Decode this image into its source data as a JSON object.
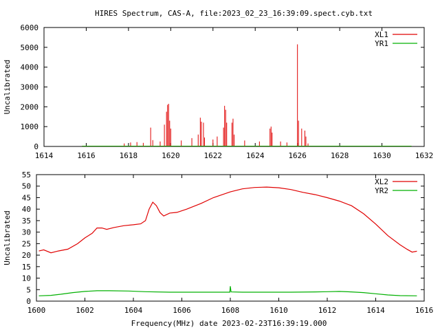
{
  "title": "HIRES Spectrum, CAS-A, file:2023_02_23_16:39:09.spect.cyb.txt",
  "xlabel": "Frequency(MHz) date 2023-02-23T16:39:19.000",
  "chart_data": [
    {
      "type": "line",
      "ylabel": "Uncalibrated",
      "xlim": [
        1614,
        1632
      ],
      "ylim": [
        0,
        6000
      ],
      "xticks": [
        1614,
        1616,
        1618,
        1620,
        1622,
        1624,
        1626,
        1628,
        1630,
        1632
      ],
      "yticks": [
        0,
        1000,
        2000,
        3000,
        4000,
        5000,
        6000
      ],
      "legend_position": "top-right",
      "series": [
        {
          "name": "XL1",
          "color": "#e00000",
          "x_range": [
            1615.8,
            1631.4
          ],
          "baseline": 15,
          "spikes": [
            [
              1617.8,
              150
            ],
            [
              1618.1,
              200
            ],
            [
              1618.4,
              220
            ],
            [
              1618.7,
              180
            ],
            [
              1619.05,
              950
            ],
            [
              1619.15,
              320
            ],
            [
              1619.5,
              250
            ],
            [
              1619.7,
              1100
            ],
            [
              1619.8,
              1750
            ],
            [
              1619.85,
              2100
            ],
            [
              1619.9,
              2150
            ],
            [
              1619.95,
              1300
            ],
            [
              1620.0,
              900
            ],
            [
              1620.5,
              300
            ],
            [
              1621.0,
              420
            ],
            [
              1621.3,
              600
            ],
            [
              1621.4,
              1450
            ],
            [
              1621.45,
              1250
            ],
            [
              1621.55,
              1200
            ],
            [
              1621.6,
              450
            ],
            [
              1622.0,
              350
            ],
            [
              1622.2,
              500
            ],
            [
              1622.5,
              950
            ],
            [
              1622.55,
              2050
            ],
            [
              1622.6,
              1850
            ],
            [
              1622.65,
              1200
            ],
            [
              1622.9,
              1200
            ],
            [
              1622.95,
              1400
            ],
            [
              1623.0,
              600
            ],
            [
              1623.5,
              300
            ],
            [
              1624.2,
              250
            ],
            [
              1624.7,
              900
            ],
            [
              1624.75,
              1000
            ],
            [
              1624.8,
              700
            ],
            [
              1625.2,
              250
            ],
            [
              1625.5,
              200
            ],
            [
              1626.0,
              5150
            ],
            [
              1626.05,
              1300
            ],
            [
              1626.2,
              900
            ],
            [
              1626.35,
              800
            ],
            [
              1626.4,
              500
            ],
            [
              1626.5,
              150
            ]
          ]
        },
        {
          "name": "YR1",
          "color": "#00b000",
          "x_range": [
            1615.8,
            1631.4
          ],
          "baseline": 8,
          "spikes": []
        }
      ]
    },
    {
      "type": "line",
      "ylabel": "Uncalibrated",
      "xlim": [
        1600,
        1616
      ],
      "ylim": [
        0,
        55
      ],
      "xticks": [
        1600,
        1602,
        1604,
        1606,
        1608,
        1610,
        1612,
        1614,
        1616
      ],
      "yticks": [
        0,
        5,
        10,
        15,
        20,
        25,
        30,
        35,
        40,
        45,
        50,
        55
      ],
      "legend_position": "top-right",
      "series": [
        {
          "name": "XL2",
          "color": "#e00000",
          "points": [
            [
              1600.1,
              21.8
            ],
            [
              1600.3,
              22.3
            ],
            [
              1600.6,
              21.0
            ],
            [
              1600.9,
              21.8
            ],
            [
              1601.3,
              22.6
            ],
            [
              1601.7,
              25.0
            ],
            [
              1602.0,
              27.5
            ],
            [
              1602.3,
              29.5
            ],
            [
              1602.5,
              31.8
            ],
            [
              1602.7,
              31.8
            ],
            [
              1602.9,
              31.2
            ],
            [
              1603.2,
              32.0
            ],
            [
              1603.6,
              32.8
            ],
            [
              1604.0,
              33.2
            ],
            [
              1604.3,
              33.6
            ],
            [
              1604.5,
              35.0
            ],
            [
              1604.65,
              40.0
            ],
            [
              1604.8,
              43.0
            ],
            [
              1604.95,
              41.5
            ],
            [
              1605.1,
              38.5
            ],
            [
              1605.25,
              37.0
            ],
            [
              1605.5,
              38.3
            ],
            [
              1605.8,
              38.6
            ],
            [
              1606.2,
              40.0
            ],
            [
              1606.8,
              42.5
            ],
            [
              1607.3,
              45.0
            ],
            [
              1608.0,
              47.5
            ],
            [
              1608.5,
              48.8
            ],
            [
              1609.0,
              49.4
            ],
            [
              1609.5,
              49.6
            ],
            [
              1610.0,
              49.3
            ],
            [
              1610.5,
              48.5
            ],
            [
              1611.0,
              47.3
            ],
            [
              1611.5,
              46.3
            ],
            [
              1612.0,
              45.0
            ],
            [
              1612.5,
              43.5
            ],
            [
              1613.0,
              41.5
            ],
            [
              1613.5,
              38.0
            ],
            [
              1614.0,
              33.5
            ],
            [
              1614.5,
              28.5
            ],
            [
              1615.0,
              24.5
            ],
            [
              1615.3,
              22.5
            ],
            [
              1615.5,
              21.3
            ],
            [
              1615.7,
              21.7
            ]
          ]
        },
        {
          "name": "YR2",
          "color": "#00b000",
          "points": [
            [
              1600.1,
              2.3
            ],
            [
              1600.6,
              2.5
            ],
            [
              1601.0,
              3.0
            ],
            [
              1601.5,
              3.7
            ],
            [
              1602.0,
              4.2
            ],
            [
              1602.5,
              4.5
            ],
            [
              1603.0,
              4.5
            ],
            [
              1603.8,
              4.4
            ],
            [
              1604.5,
              4.1
            ],
            [
              1605.5,
              3.9
            ],
            [
              1606.5,
              3.9
            ],
            [
              1607.5,
              3.9
            ],
            [
              1607.98,
              3.9
            ],
            [
              1608.0,
              6.5
            ],
            [
              1608.03,
              4.0
            ],
            [
              1608.5,
              3.9
            ],
            [
              1609.5,
              3.9
            ],
            [
              1610.5,
              3.9
            ],
            [
              1611.5,
              4.0
            ],
            [
              1612.0,
              4.1
            ],
            [
              1612.5,
              4.2
            ],
            [
              1613.0,
              4.0
            ],
            [
              1613.5,
              3.7
            ],
            [
              1614.0,
              3.2
            ],
            [
              1614.5,
              2.7
            ],
            [
              1615.0,
              2.4
            ],
            [
              1615.7,
              2.3
            ]
          ]
        }
      ]
    }
  ]
}
